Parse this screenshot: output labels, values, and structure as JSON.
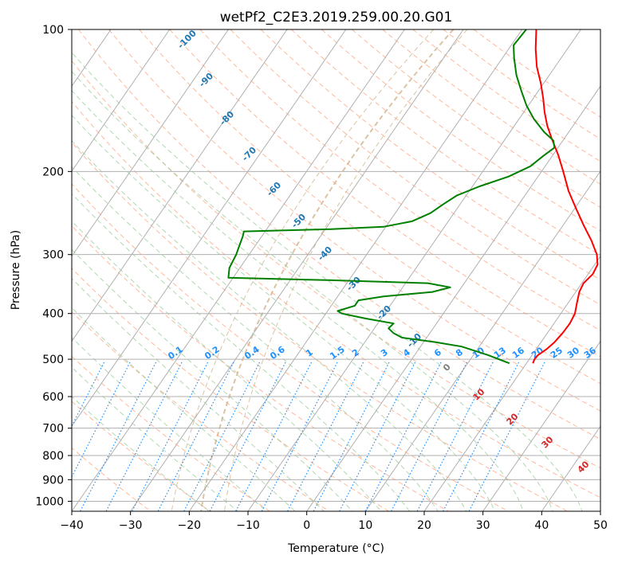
{
  "chart_data": {
    "type": "line",
    "subtype": "skew-T log-P thermodynamic diagram",
    "title": "wetPf2_C2E3.2019.259.00.20.G01",
    "xlabel": "Temperature (°C)",
    "ylabel": "Pressure (hPa)",
    "xlim": [
      -40,
      50
    ],
    "ylim": [
      1050,
      100
    ],
    "y_scale": "log",
    "x_ticks": [
      -40,
      -30,
      -20,
      -10,
      0,
      10,
      20,
      30,
      40,
      50
    ],
    "y_ticks": [
      100,
      200,
      300,
      400,
      500,
      600,
      700,
      800,
      900,
      1000
    ],
    "grid": true,
    "series": [
      {
        "name": "",
        "color": "#ff0000",
        "kind": "temperature profile",
        "points": [
          {
            "p": 510,
            "t": 21.1
          },
          {
            "p": 500,
            "t": 20.9
          },
          {
            "p": 490,
            "t": 21.0
          },
          {
            "p": 475,
            "t": 21.8
          },
          {
            "p": 460,
            "t": 22.3
          },
          {
            "p": 440,
            "t": 22.6
          },
          {
            "p": 420,
            "t": 22.7
          },
          {
            "p": 400,
            "t": 22.4
          },
          {
            "p": 380,
            "t": 21.5
          },
          {
            "p": 360,
            "t": 20.6
          },
          {
            "p": 345,
            "t": 20.3
          },
          {
            "p": 330,
            "t": 20.8
          },
          {
            "p": 315,
            "t": 20.5
          },
          {
            "p": 300,
            "t": 19.2
          },
          {
            "p": 280,
            "t": 16.6
          },
          {
            "p": 260,
            "t": 13.5
          },
          {
            "p": 240,
            "t": 10.3
          },
          {
            "p": 220,
            "t": 6.9
          },
          {
            "p": 200,
            "t": 3.7
          },
          {
            "p": 185,
            "t": 1.0
          },
          {
            "p": 170,
            "t": -2.2
          },
          {
            "p": 160,
            "t": -4.4
          },
          {
            "p": 150,
            "t": -6.4
          },
          {
            "p": 140,
            "t": -8.3
          },
          {
            "p": 130,
            "t": -10.5
          },
          {
            "p": 120,
            "t": -13.1
          },
          {
            "p": 110,
            "t": -15.4
          },
          {
            "p": 100,
            "t": -17.6
          }
        ]
      },
      {
        "name": "",
        "color": "#008000",
        "kind": "dewpoint profile",
        "points": [
          {
            "p": 510,
            "t": 17.1
          },
          {
            "p": 490,
            "t": 12.5
          },
          {
            "p": 470,
            "t": 7.0
          },
          {
            "p": 460,
            "t": 2.0
          },
          {
            "p": 450,
            "t": -4.2
          },
          {
            "p": 440,
            "t": -6.2
          },
          {
            "p": 430,
            "t": -7.6
          },
          {
            "p": 420,
            "t": -7.3
          },
          {
            "p": 410,
            "t": -12.6
          },
          {
            "p": 400,
            "t": -17.3
          },
          {
            "p": 395,
            "t": -18.3
          },
          {
            "p": 385,
            "t": -16.0
          },
          {
            "p": 375,
            "t": -16.0
          },
          {
            "p": 368,
            "t": -12.2
          },
          {
            "p": 360,
            "t": -4.4
          },
          {
            "p": 352,
            "t": -1.9
          },
          {
            "p": 345,
            "t": -6.2
          },
          {
            "p": 340,
            "t": -23.0
          },
          {
            "p": 336,
            "t": -40.8
          },
          {
            "p": 320,
            "t": -41.8
          },
          {
            "p": 300,
            "t": -42.2
          },
          {
            "p": 285,
            "t": -42.8
          },
          {
            "p": 275,
            "t": -43.2
          },
          {
            "p": 268,
            "t": -43.6
          },
          {
            "p": 265,
            "t": -29.0
          },
          {
            "p": 262,
            "t": -20.4
          },
          {
            "p": 255,
            "t": -16.2
          },
          {
            "p": 245,
            "t": -14.0
          },
          {
            "p": 235,
            "t": -12.9
          },
          {
            "p": 225,
            "t": -11.6
          },
          {
            "p": 215,
            "t": -8.8
          },
          {
            "p": 205,
            "t": -5.0
          },
          {
            "p": 195,
            "t": -2.5
          },
          {
            "p": 185,
            "t": -1.5
          },
          {
            "p": 178,
            "t": -0.6
          },
          {
            "p": 172,
            "t": -1.6
          },
          {
            "p": 165,
            "t": -4.2
          },
          {
            "p": 155,
            "t": -7.4
          },
          {
            "p": 145,
            "t": -10.3
          },
          {
            "p": 135,
            "t": -12.9
          },
          {
            "p": 125,
            "t": -15.6
          },
          {
            "p": 115,
            "t": -18.0
          },
          {
            "p": 108,
            "t": -19.6
          },
          {
            "p": 100,
            "t": -19.3
          }
        ]
      }
    ],
    "background_lines": {
      "isotherms": {
        "color": "#b0b0b0",
        "style": "solid"
      },
      "isobars": {
        "color": "#b0b0b0",
        "style": "solid"
      },
      "dry_adiabats": {
        "color": "#ffa07a",
        "style": "dashed"
      },
      "moist_adiabats": {
        "color": "#90c890",
        "style": "dashed"
      },
      "mixing_ratio_lines": {
        "color": "#1e90ff",
        "style": "dotted"
      },
      "theta_e_curves": {
        "color": "#d2b48c",
        "style": "dashed"
      }
    },
    "annotations": {
      "mixing_ratio_labels": [
        "0.1",
        "0.2",
        "0.4",
        "0.6",
        "1",
        "1.5",
        "2",
        "3",
        "4",
        "6",
        "8",
        "10",
        "13",
        "16",
        "20",
        "25",
        "30",
        "36"
      ],
      "mixing_ratio_color": "#1e90ff",
      "moist_adiabat_labels": [
        "-100",
        "-90",
        "-80",
        "-70",
        "-60",
        "-50",
        "-40",
        "-30",
        "-20",
        "-10"
      ],
      "moist_adiabat_label_color": "#1f77b4",
      "surface_labels": [
        "0",
        "10",
        "20",
        "30",
        "40"
      ],
      "surface_label_colors": [
        "#808080",
        "#d62728",
        "#d62728",
        "#d62728",
        "#d62728"
      ]
    }
  }
}
